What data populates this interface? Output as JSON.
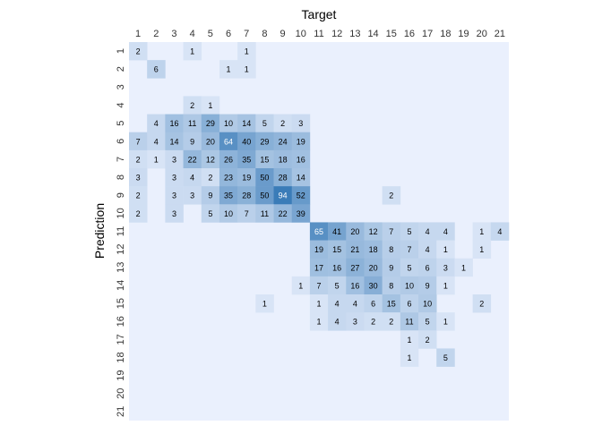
{
  "chart_data": {
    "type": "heatmap",
    "title": "",
    "xlabel": "Target",
    "ylabel": "Prediction",
    "x_categories": [
      "1",
      "2",
      "3",
      "4",
      "5",
      "6",
      "7",
      "8",
      "9",
      "10",
      "11",
      "12",
      "13",
      "14",
      "15",
      "16",
      "17",
      "18",
      "19",
      "20",
      "21"
    ],
    "y_categories": [
      "1",
      "2",
      "3",
      "4",
      "5",
      "6",
      "7",
      "8",
      "9",
      "10",
      "11",
      "12",
      "13",
      "14",
      "15",
      "16",
      "17",
      "18",
      "19",
      "20",
      "21"
    ],
    "x_axis_position": "top",
    "y_tick_orientation": "rotated",
    "color_scale": {
      "low": "#eaf0fd",
      "high": "#3a7cb8",
      "min": 0,
      "max": 94
    },
    "matrix": [
      [
        2,
        0,
        0,
        1,
        0,
        0,
        1,
        0,
        0,
        0,
        0,
        0,
        0,
        0,
        0,
        0,
        0,
        0,
        0,
        0,
        0
      ],
      [
        0,
        6,
        0,
        0,
        0,
        1,
        1,
        0,
        0,
        0,
        0,
        0,
        0,
        0,
        0,
        0,
        0,
        0,
        0,
        0,
        0
      ],
      [
        0,
        0,
        0,
        0,
        0,
        0,
        0,
        0,
        0,
        0,
        0,
        0,
        0,
        0,
        0,
        0,
        0,
        0,
        0,
        0,
        0
      ],
      [
        0,
        0,
        0,
        2,
        1,
        0,
        0,
        0,
        0,
        0,
        0,
        0,
        0,
        0,
        0,
        0,
        0,
        0,
        0,
        0,
        0
      ],
      [
        0,
        4,
        16,
        11,
        29,
        10,
        14,
        5,
        2,
        3,
        0,
        0,
        0,
        0,
        0,
        0,
        0,
        0,
        0,
        0,
        0
      ],
      [
        7,
        4,
        14,
        9,
        20,
        64,
        40,
        29,
        24,
        19,
        0,
        0,
        0,
        0,
        0,
        0,
        0,
        0,
        0,
        0,
        0
      ],
      [
        2,
        1,
        3,
        22,
        12,
        26,
        35,
        15,
        18,
        16,
        0,
        0,
        0,
        0,
        0,
        0,
        0,
        0,
        0,
        0,
        0
      ],
      [
        3,
        0,
        3,
        4,
        2,
        23,
        19,
        50,
        28,
        14,
        0,
        0,
        0,
        0,
        0,
        0,
        0,
        0,
        0,
        0,
        0
      ],
      [
        2,
        0,
        3,
        3,
        9,
        35,
        28,
        50,
        94,
        52,
        0,
        0,
        0,
        0,
        2,
        0,
        0,
        0,
        0,
        0,
        0
      ],
      [
        2,
        0,
        3,
        0,
        5,
        10,
        7,
        11,
        22,
        39,
        0,
        0,
        0,
        0,
        0,
        0,
        0,
        0,
        0,
        0,
        0
      ],
      [
        0,
        0,
        0,
        0,
        0,
        0,
        0,
        0,
        0,
        0,
        65,
        41,
        20,
        12,
        7,
        5,
        4,
        4,
        0,
        1,
        4
      ],
      [
        0,
        0,
        0,
        0,
        0,
        0,
        0,
        0,
        0,
        0,
        19,
        15,
        21,
        18,
        8,
        7,
        4,
        1,
        0,
        1,
        0
      ],
      [
        0,
        0,
        0,
        0,
        0,
        0,
        0,
        0,
        0,
        0,
        17,
        16,
        27,
        20,
        9,
        5,
        6,
        3,
        1,
        0,
        0
      ],
      [
        0,
        0,
        0,
        0,
        0,
        0,
        0,
        0,
        0,
        1,
        7,
        5,
        16,
        30,
        8,
        10,
        9,
        1,
        0,
        0,
        0
      ],
      [
        0,
        0,
        0,
        0,
        0,
        0,
        0,
        1,
        0,
        0,
        1,
        4,
        4,
        6,
        15,
        6,
        10,
        0,
        0,
        2,
        0
      ],
      [
        0,
        0,
        0,
        0,
        0,
        0,
        0,
        0,
        0,
        0,
        1,
        4,
        3,
        2,
        2,
        11,
        5,
        1,
        0,
        0,
        0
      ],
      [
        0,
        0,
        0,
        0,
        0,
        0,
        0,
        0,
        0,
        0,
        0,
        0,
        0,
        0,
        0,
        1,
        2,
        0,
        0,
        0,
        0
      ],
      [
        0,
        0,
        0,
        0,
        0,
        0,
        0,
        0,
        0,
        0,
        0,
        0,
        0,
        0,
        0,
        1,
        0,
        5,
        0,
        0,
        0
      ],
      [
        0,
        0,
        0,
        0,
        0,
        0,
        0,
        0,
        0,
        0,
        0,
        0,
        0,
        0,
        0,
        0,
        0,
        0,
        0,
        0,
        0
      ],
      [
        0,
        0,
        0,
        0,
        0,
        0,
        0,
        0,
        0,
        0,
        0,
        0,
        0,
        0,
        0,
        0,
        0,
        0,
        0,
        0,
        0
      ],
      [
        0,
        0,
        0,
        0,
        0,
        0,
        0,
        0,
        0,
        0,
        0,
        0,
        0,
        0,
        0,
        0,
        0,
        0,
        0,
        0,
        0
      ]
    ],
    "legend": "none",
    "grid": false
  }
}
